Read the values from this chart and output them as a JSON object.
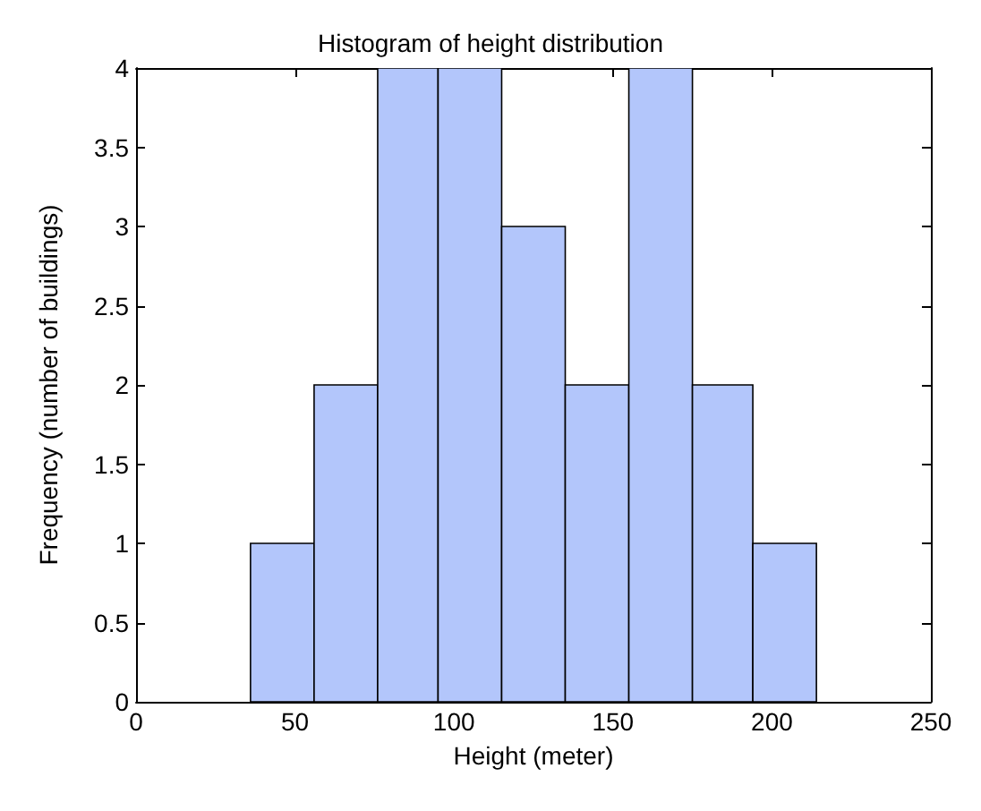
{
  "chart_data": {
    "type": "histogram",
    "title": "Histogram of height distribution",
    "xlabel": "Height (meter)",
    "ylabel": "Frequency (number of buildings)",
    "bins": [
      36,
      56,
      76,
      95,
      115,
      135,
      155,
      175,
      194,
      214
    ],
    "values": [
      1,
      2,
      4,
      4,
      3,
      2,
      4,
      2,
      1
    ],
    "color": "#b3c6fb",
    "xlim": [
      0,
      250
    ],
    "xticks": [
      0,
      50,
      100,
      150,
      200,
      250
    ],
    "ylim": [
      0,
      4
    ],
    "yticks": [
      0,
      0.5,
      1,
      1.5,
      2,
      2.5,
      3,
      3.5,
      4
    ],
    "grid": false
  }
}
